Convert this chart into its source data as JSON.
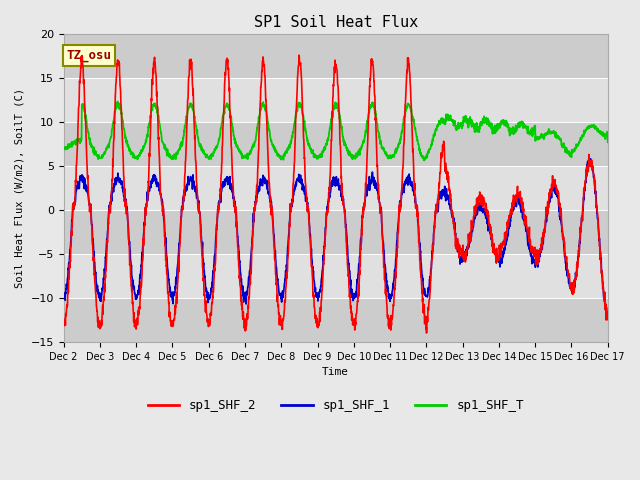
{
  "title": "SP1 Soil Heat Flux",
  "xlabel": "Time",
  "ylabel": "Soil Heat Flux (W/m2), SoilT (C)",
  "ylim": [
    -15,
    20
  ],
  "yticks": [
    -15,
    -10,
    -5,
    0,
    5,
    10,
    15,
    20
  ],
  "xtick_labels": [
    "Dec 2",
    "Dec 3",
    "Dec 4",
    "Dec 5",
    "Dec 6",
    "Dec 7",
    "Dec 8",
    "Dec 9",
    "Dec 10",
    "Dec 11",
    "Dec 12",
    "Dec 13",
    "Dec 14",
    "Dec 15",
    "Dec 16",
    "Dec 17"
  ],
  "colors": {
    "sp1_SHF_2": "#ff0000",
    "sp1_SHF_1": "#0000cc",
    "sp1_SHF_T": "#00cc00"
  },
  "fig_bg": "#e8e8e8",
  "plot_bg": "#e0e0e0",
  "band_dark": "#cccccc",
  "tz_label": "TZ_osu",
  "tz_bg": "#ffffcc",
  "tz_border": "#888800",
  "tz_text_color": "#990000",
  "legend_labels": [
    "sp1_SHF_2",
    "sp1_SHF_1",
    "sp1_SHF_T"
  ],
  "n_days": 15,
  "pts_per_day": 144
}
